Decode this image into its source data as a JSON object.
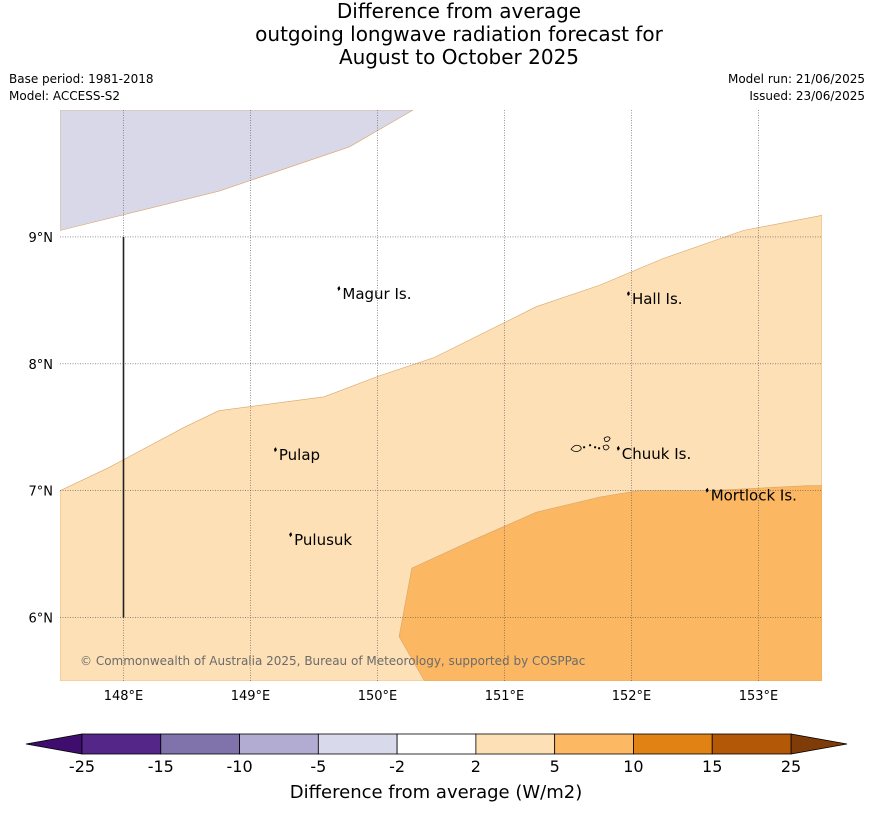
{
  "title": {
    "lines": [
      "Difference from average",
      "outgoing longwave radiation forecast for",
      "August to October 2025"
    ]
  },
  "meta": {
    "base_period": "Base period: 1981-2018",
    "model": "Model: ACCESS-S2",
    "model_run": "Model run: 21/06/2025",
    "issued": "Issued: 23/06/2025"
  },
  "map": {
    "lon_range": [
      147.5,
      153.5
    ],
    "lat_range": [
      5.5,
      10.0
    ],
    "x_ticks": [
      "148°E",
      "149°E",
      "150°E",
      "151°E",
      "152°E",
      "153°E"
    ],
    "x_tick_values": [
      148,
      149,
      150,
      151,
      152,
      153
    ],
    "y_ticks": [
      "9°N",
      "8°N",
      "7°N",
      "6°N"
    ],
    "y_tick_values": [
      9,
      8,
      7,
      6
    ],
    "grid": true,
    "places": [
      {
        "name": "Magur Is.",
        "lon": 149.7,
        "lat": 8.55
      },
      {
        "name": "Hall Is.",
        "lon": 151.98,
        "lat": 8.51
      },
      {
        "name": "Pulap",
        "lon": 149.2,
        "lat": 7.28
      },
      {
        "name": "Chuuk Is.",
        "lon": 151.9,
        "lat": 7.29
      },
      {
        "name": "Mortlock Is.",
        "lon": 152.6,
        "lat": 6.96
      },
      {
        "name": "Pulusuk",
        "lon": 149.32,
        "lat": 6.61
      }
    ],
    "regions": [
      {
        "range": "-5 to -2",
        "color": "#d8d8e9",
        "polygon": [
          [
            147.5,
            10.0
          ],
          [
            150.28,
            10.0
          ],
          [
            149.78,
            9.71
          ],
          [
            148.75,
            9.36
          ],
          [
            147.5,
            9.05
          ]
        ]
      },
      {
        "range": "2 to 5",
        "color": "#fde0b6",
        "polygon": [
          [
            147.5,
            7.0
          ],
          [
            147.88,
            7.18
          ],
          [
            148.48,
            7.5
          ],
          [
            148.75,
            7.63
          ],
          [
            149.58,
            7.74
          ],
          [
            150.0,
            7.9
          ],
          [
            150.45,
            8.05
          ],
          [
            151.25,
            8.45
          ],
          [
            151.75,
            8.62
          ],
          [
            152.25,
            8.83
          ],
          [
            152.88,
            9.05
          ],
          [
            153.5,
            9.17
          ],
          [
            153.5,
            5.5
          ],
          [
            147.5,
            5.5
          ]
        ]
      },
      {
        "range": "5 to 10",
        "color": "#fbb762",
        "polygon": [
          [
            150.27,
            6.39
          ],
          [
            150.75,
            6.61
          ],
          [
            151.25,
            6.83
          ],
          [
            151.75,
            6.95
          ],
          [
            152.05,
            7.0
          ],
          [
            152.6,
            7.0
          ],
          [
            153.4,
            7.04
          ],
          [
            153.5,
            7.04
          ],
          [
            153.5,
            5.5
          ],
          [
            150.37,
            5.5
          ],
          [
            150.17,
            5.85
          ]
        ]
      }
    ],
    "line": {
      "lon": 148.0,
      "lat_from": 6.0,
      "lat_to": 9.0
    },
    "copyright": "© Commonwealth of Australia 2025, Bureau of Meteorology, supported by COSPPac"
  },
  "colorbar": {
    "labels": [
      "-25",
      "-15",
      "-10",
      "-5",
      "-2",
      "2",
      "5",
      "10",
      "15",
      "25"
    ],
    "under_color": "#3f0d6e",
    "over_color": "#7f3b08",
    "colors": [
      "#542688",
      "#8073ac",
      "#b2abd2",
      "#d8daeb",
      "#ffffff",
      "#fee0b6",
      "#fdb863",
      "#e08214",
      "#b35806"
    ],
    "title": "Difference from average (W/m2)"
  }
}
